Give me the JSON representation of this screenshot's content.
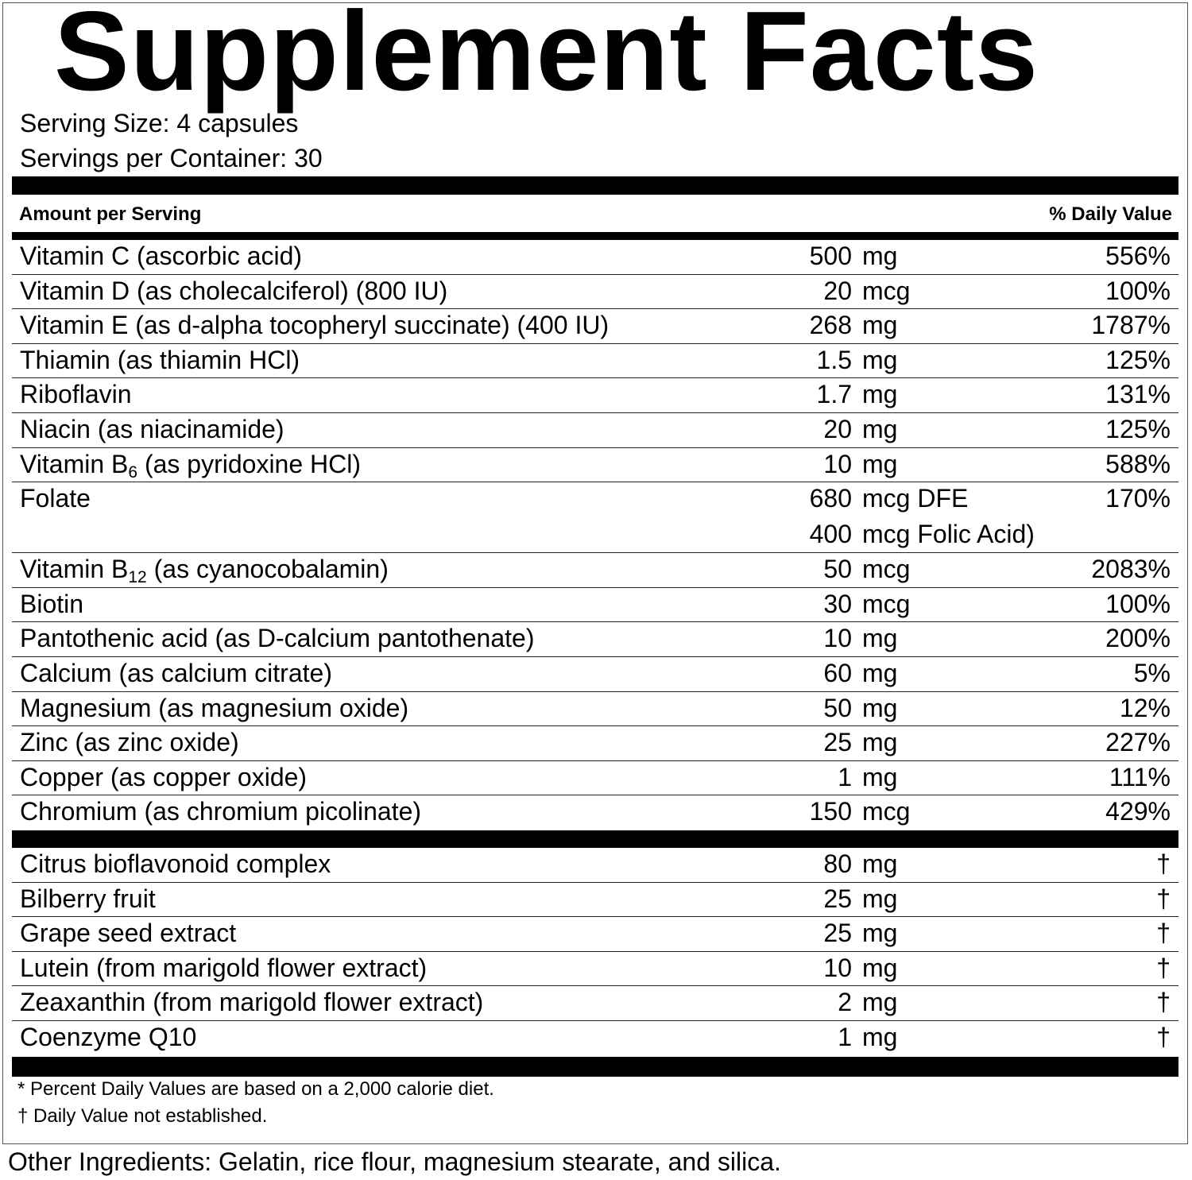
{
  "title": "Supplement Facts",
  "serving_size": "Serving Size: 4 capsules",
  "servings_per_container": "Servings per Container: 30",
  "header": {
    "amount": "Amount per Serving",
    "daily_value": "% Daily Value"
  },
  "nutrients": [
    {
      "name": "Vitamin C (ascorbic acid)",
      "sub": "",
      "rest": "",
      "amount": "500",
      "unit": "mg",
      "dv": "556%"
    },
    {
      "name": "Vitamin D (as cholecalciferol) (800 IU)",
      "sub": "",
      "rest": "",
      "amount": "20",
      "unit": "mcg",
      "dv": "100%"
    },
    {
      "name": "Vitamin E (as d-alpha tocopheryl succinate) (400 IU)",
      "sub": "",
      "rest": "",
      "amount": "268",
      "unit": "mg",
      "dv": "1787%"
    },
    {
      "name": "Thiamin (as thiamin HCl)",
      "sub": "",
      "rest": "",
      "amount": "1.5",
      "unit": "mg",
      "dv": "125%"
    },
    {
      "name": "Riboflavin",
      "sub": "",
      "rest": "",
      "amount": "1.7",
      "unit": "mg",
      "dv": "131%"
    },
    {
      "name": "Niacin (as niacinamide)",
      "sub": "",
      "rest": "",
      "amount": "20",
      "unit": "mg",
      "dv": "125%"
    },
    {
      "name": "Vitamin B",
      "sub": "6",
      "rest": " (as pyridoxine HCl)",
      "amount": "10",
      "unit": "mg",
      "dv": "588%"
    },
    {
      "name": "Folate",
      "sub": "",
      "rest": "",
      "amount": "680",
      "unit": "mcg DFE",
      "amount2": "400",
      "unit2": "mcg Folic Acid)",
      "dv": "170%"
    },
    {
      "name": "Vitamin B",
      "sub": "12",
      "rest": " (as cyanocobalamin)",
      "amount": "50",
      "unit": "mcg",
      "dv": "2083%"
    },
    {
      "name": "Biotin",
      "sub": "",
      "rest": "",
      "amount": "30",
      "unit": "mcg",
      "dv": "100%"
    },
    {
      "name": "Pantothenic acid (as D-calcium pantothenate)",
      "sub": "",
      "rest": "",
      "amount": "10",
      "unit": "mg",
      "dv": "200%"
    },
    {
      "name": "Calcium (as calcium citrate)",
      "sub": "",
      "rest": "",
      "amount": "60",
      "unit": "mg",
      "dv": "5%"
    },
    {
      "name": "Magnesium (as magnesium oxide)",
      "sub": "",
      "rest": "",
      "amount": "50",
      "unit": "mg",
      "dv": "12%"
    },
    {
      "name": "Zinc (as zinc oxide)",
      "sub": "",
      "rest": "",
      "amount": "25",
      "unit": "mg",
      "dv": "227%"
    },
    {
      "name": "Copper (as copper oxide)",
      "sub": "",
      "rest": "",
      "amount": "1",
      "unit": "mg",
      "dv": "111%"
    },
    {
      "name": "Chromium (as chromium picolinate)",
      "sub": "",
      "rest": "",
      "amount": "150",
      "unit": "mcg",
      "dv": "429%"
    }
  ],
  "other_nutrients": [
    {
      "name": "Citrus bioflavonoid complex",
      "amount": "80",
      "unit": "mg",
      "dv": "†"
    },
    {
      "name": "Bilberry fruit",
      "amount": "25",
      "unit": "mg",
      "dv": "†"
    },
    {
      "name": "Grape seed extract",
      "amount": "25",
      "unit": "mg",
      "dv": "†"
    },
    {
      "name": "Lutein (from marigold flower extract)",
      "amount": "10",
      "unit": "mg",
      "dv": "†"
    },
    {
      "name": "Zeaxanthin (from marigold flower extract)",
      "amount": "2",
      "unit": "mg",
      "dv": "†"
    },
    {
      "name": "Coenzyme Q10",
      "amount": "1",
      "unit": "mg",
      "dv": "†"
    }
  ],
  "footnotes": [
    "* Percent Daily Values are based on a 2,000 calorie diet.",
    "† Daily Value not established."
  ],
  "other_ingredients": "Other Ingredients: Gelatin, rice flour, magnesium stearate, and silica."
}
